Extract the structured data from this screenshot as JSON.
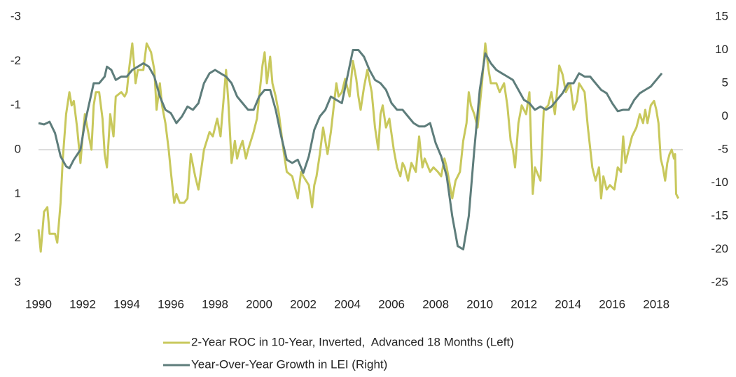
{
  "chart_data": {
    "type": "line",
    "xlim": [
      1990,
      2019.2
    ],
    "xticks": [
      1990,
      1992,
      1994,
      1996,
      1998,
      2000,
      2002,
      2004,
      2006,
      2008,
      2010,
      2012,
      2014,
      2016,
      2018
    ],
    "ylim": [
      -3,
      3
    ],
    "y_inverted": true,
    "yticks": [
      -3,
      -2,
      -1,
      0,
      1,
      2,
      3
    ],
    "y2lim": [
      -25,
      15
    ],
    "y2ticks": [
      15,
      10,
      5,
      0,
      -5,
      -10,
      -15,
      -20,
      -25
    ],
    "legend": "bottom",
    "series": [
      {
        "name": "2-Year ROC in 10-Year, Inverted,  Advanced 18 Months (Left)",
        "color": "#c8c85c",
        "x": [
          1990.0,
          1990.1,
          1990.25,
          1990.4,
          1990.5,
          1990.75,
          1990.85,
          1991.0,
          1991.1,
          1991.25,
          1991.4,
          1991.5,
          1991.6,
          1991.75,
          1991.9,
          1992.0,
          1992.1,
          1992.25,
          1992.4,
          1992.5,
          1992.6,
          1992.75,
          1992.9,
          1993.0,
          1993.1,
          1993.25,
          1993.4,
          1993.5,
          1993.75,
          1993.9,
          1994.0,
          1994.1,
          1994.25,
          1994.4,
          1994.5,
          1994.75,
          1994.9,
          1995.1,
          1995.25,
          1995.35,
          1995.5,
          1995.6,
          1995.75,
          1995.9,
          1996.0,
          1996.15,
          1996.25,
          1996.4,
          1996.6,
          1996.75,
          1996.9,
          1997.1,
          1997.25,
          1997.5,
          1997.75,
          1997.9,
          1998.1,
          1998.25,
          1998.5,
          1998.6,
          1998.75,
          1998.9,
          1999.0,
          1999.1,
          1999.25,
          1999.4,
          1999.5,
          1999.75,
          1999.9,
          2000.0,
          2000.15,
          2000.25,
          2000.35,
          2000.5,
          2000.6,
          2000.75,
          2000.9,
          2001.1,
          2001.25,
          2001.5,
          2001.6,
          2001.75,
          2001.9,
          2002.0,
          2002.25,
          2002.4,
          2002.5,
          2002.6,
          2002.75,
          2002.9,
          2003.1,
          2003.25,
          2003.5,
          2003.6,
          2003.75,
          2003.9,
          2004.1,
          2004.25,
          2004.4,
          2004.5,
          2004.6,
          2004.75,
          2004.9,
          2005.1,
          2005.25,
          2005.4,
          2005.5,
          2005.6,
          2005.75,
          2005.9,
          2006.1,
          2006.25,
          2006.4,
          2006.5,
          2006.6,
          2006.75,
          2006.9,
          2007.1,
          2007.25,
          2007.4,
          2007.5,
          2007.75,
          2007.9,
          2008.1,
          2008.25,
          2008.4,
          2008.5,
          2008.75,
          2008.9,
          2009.1,
          2009.25,
          2009.4,
          2009.5,
          2009.6,
          2009.75,
          2009.9,
          2010.1,
          2010.25,
          2010.4,
          2010.5,
          2010.75,
          2010.9,
          2011.1,
          2011.25,
          2011.4,
          2011.5,
          2011.6,
          2011.75,
          2011.9,
          2012.1,
          2012.25,
          2012.4,
          2012.5,
          2012.75,
          2012.9,
          2013.1,
          2013.25,
          2013.4,
          2013.5,
          2013.6,
          2013.75,
          2013.9,
          2014.1,
          2014.25,
          2014.4,
          2014.5,
          2014.75,
          2014.9,
          2015.1,
          2015.25,
          2015.4,
          2015.5,
          2015.6,
          2015.75,
          2015.9,
          2016.1,
          2016.25,
          2016.4,
          2016.5,
          2016.6,
          2016.75,
          2016.9,
          2017.1,
          2017.25,
          2017.4,
          2017.5,
          2017.6,
          2017.75,
          2017.9,
          2018.0,
          2018.1,
          2018.2,
          2018.3,
          2018.4,
          2018.5,
          2018.6,
          2018.7,
          2018.8,
          2018.85,
          2018.9,
          2019.0
        ],
        "values": [
          1.8,
          2.3,
          1.4,
          1.3,
          1.9,
          1.9,
          2.1,
          1.2,
          0.2,
          -0.8,
          -1.3,
          -1.0,
          -1.1,
          -0.5,
          0.3,
          -0.3,
          -0.8,
          -0.4,
          0.0,
          -1.0,
          -1.3,
          -1.3,
          -0.7,
          0.1,
          0.4,
          -0.8,
          -0.3,
          -1.2,
          -1.3,
          -1.2,
          -1.3,
          -1.8,
          -2.4,
          -1.5,
          -1.8,
          -1.8,
          -2.4,
          -2.2,
          -1.8,
          -0.9,
          -1.5,
          -1.0,
          -0.6,
          0.0,
          0.5,
          1.2,
          1.0,
          1.2,
          1.2,
          1.1,
          0.1,
          0.6,
          0.9,
          0.0,
          -0.4,
          -0.3,
          -0.7,
          -0.3,
          -1.8,
          -1.1,
          0.3,
          -0.2,
          0.2,
          0.0,
          -0.2,
          0.2,
          0.0,
          -0.4,
          -0.7,
          -1.2,
          -1.9,
          -2.2,
          -1.5,
          -2.1,
          -1.5,
          -1.2,
          -0.8,
          0.0,
          0.5,
          0.6,
          0.8,
          1.1,
          0.5,
          0.6,
          0.8,
          1.3,
          0.8,
          0.6,
          0.1,
          -0.5,
          0.1,
          -0.4,
          -1.5,
          -1.2,
          -1.3,
          -1.6,
          -1.2,
          -2.0,
          -1.6,
          -1.2,
          -0.9,
          -1.4,
          -1.8,
          -1.3,
          -0.5,
          0.0,
          -0.8,
          -1.0,
          -0.5,
          -0.7,
          0.0,
          0.4,
          0.6,
          0.3,
          0.4,
          0.7,
          0.3,
          0.5,
          -0.3,
          0.4,
          0.2,
          0.5,
          0.4,
          0.5,
          0.6,
          0.2,
          0.4,
          1.1,
          0.7,
          0.5,
          -0.2,
          -0.6,
          -1.3,
          -1.0,
          -0.8,
          -0.5,
          -1.5,
          -2.4,
          -1.8,
          -1.5,
          -1.5,
          -1.3,
          -1.5,
          -1.0,
          -0.2,
          0.0,
          0.4,
          -0.6,
          -1.0,
          -0.8,
          -1.3,
          1.0,
          0.4,
          0.7,
          -0.9,
          -1.0,
          -1.3,
          -0.8,
          -1.3,
          -1.9,
          -1.7,
          -1.3,
          -1.5,
          -0.9,
          -1.1,
          -1.5,
          -1.3,
          -0.5,
          0.4,
          0.7,
          0.4,
          1.1,
          0.6,
          0.9,
          0.8,
          0.9,
          0.4,
          0.5,
          -0.3,
          0.3,
          0.0,
          -0.3,
          -0.5,
          -0.8,
          -0.6,
          -0.9,
          -0.6,
          -1.0,
          -1.1,
          -0.9,
          -0.6,
          0.2,
          0.4,
          0.7,
          0.3,
          0.1,
          0.0,
          0.2,
          0.1,
          1.0,
          1.1
        ]
      },
      {
        "name": "Year-Over-Year Growth in LEI (Right)",
        "color": "#5e7d7b",
        "axis": "y2",
        "x": [
          1990.0,
          1990.25,
          1990.5,
          1990.75,
          1991.0,
          1991.25,
          1991.4,
          1991.6,
          1991.9,
          1992.1,
          1992.3,
          1992.5,
          1992.75,
          1993.0,
          1993.1,
          1993.3,
          1993.5,
          1993.75,
          1994.0,
          1994.25,
          1994.5,
          1994.75,
          1995.0,
          1995.25,
          1995.5,
          1995.75,
          1996.0,
          1996.25,
          1996.5,
          1996.75,
          1997.0,
          1997.25,
          1997.5,
          1997.75,
          1998.0,
          1998.25,
          1998.5,
          1998.75,
          1999.0,
          1999.25,
          1999.5,
          1999.75,
          2000.0,
          2000.25,
          2000.5,
          2000.75,
          2001.0,
          2001.25,
          2001.5,
          2001.75,
          2002.0,
          2002.25,
          2002.5,
          2002.75,
          2003.0,
          2003.25,
          2003.5,
          2003.75,
          2004.0,
          2004.25,
          2004.5,
          2004.75,
          2005.0,
          2005.25,
          2005.5,
          2005.75,
          2006.0,
          2006.25,
          2006.5,
          2006.75,
          2007.0,
          2007.25,
          2007.5,
          2007.75,
          2008.0,
          2008.25,
          2008.5,
          2008.75,
          2009.0,
          2009.25,
          2009.5,
          2009.75,
          2010.0,
          2010.25,
          2010.5,
          2010.75,
          2011.0,
          2011.25,
          2011.5,
          2011.75,
          2012.0,
          2012.25,
          2012.5,
          2012.75,
          2013.0,
          2013.25,
          2013.5,
          2013.75,
          2014.0,
          2014.25,
          2014.5,
          2014.75,
          2015.0,
          2015.25,
          2015.5,
          2015.75,
          2016.0,
          2016.25,
          2016.5,
          2016.75,
          2017.0,
          2017.25,
          2017.5,
          2017.75,
          2018.0,
          2018.25
        ],
        "values": [
          -1,
          -1.2,
          -0.8,
          -2.5,
          -6,
          -7.5,
          -7.8,
          -6.5,
          -5,
          -1,
          2,
          5,
          5,
          6,
          7.5,
          7,
          5.5,
          6,
          6,
          7,
          7.5,
          8,
          7.5,
          6,
          3,
          1,
          0.5,
          -1,
          0,
          1.5,
          1,
          2,
          5,
          6.5,
          7,
          6.5,
          6,
          5,
          3,
          2,
          1,
          1,
          3,
          4,
          4,
          1,
          -3,
          -6.5,
          -7,
          -6.5,
          -8.5,
          -6,
          -2,
          0,
          1,
          3,
          2.5,
          2,
          6,
          10,
          10,
          9,
          7,
          5.5,
          5,
          4,
          2,
          1,
          1,
          0,
          -1,
          -1.5,
          -1.5,
          -1,
          -4,
          -6,
          -9,
          -15,
          -19.5,
          -20,
          -15,
          -5,
          4,
          9.5,
          8,
          7,
          6.5,
          6,
          5.5,
          4,
          2.5,
          2,
          1,
          1.5,
          1,
          1.5,
          2.5,
          3.5,
          5,
          5,
          6.5,
          6,
          6,
          5,
          4,
          3.5,
          2,
          0.8,
          1,
          1,
          2.5,
          3.5,
          4,
          4.5,
          5.5,
          6.5
        ]
      }
    ]
  }
}
